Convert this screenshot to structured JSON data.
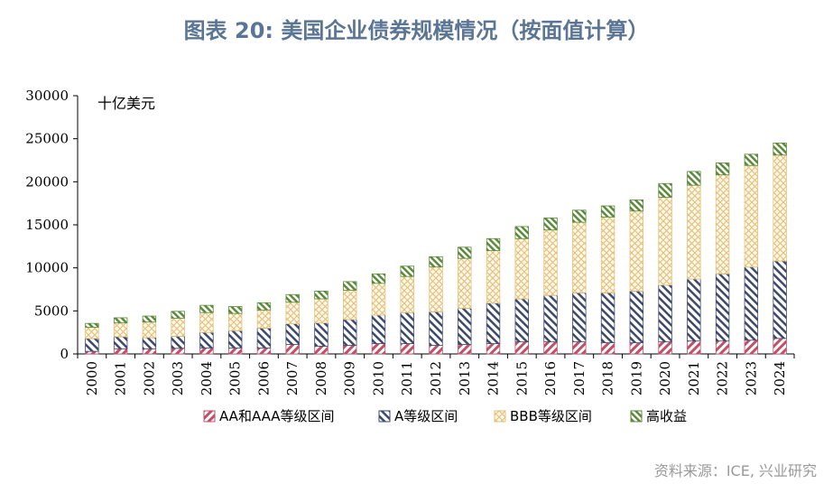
{
  "title": "图表 20: 美国企业债券规模情况（按面值计算）",
  "source": "资料来源：ICE, 兴业研究",
  "chart_data": {
    "type": "bar",
    "stacked": true,
    "unit_label": "十亿美元",
    "categories": [
      "2000",
      "2001",
      "2002",
      "2003",
      "2004",
      "2005",
      "2006",
      "2007",
      "2008",
      "2009",
      "2010",
      "2011",
      "2012",
      "2013",
      "2014",
      "2015",
      "2016",
      "2017",
      "2018",
      "2019",
      "2020",
      "2021",
      "2022",
      "2023",
      "2024"
    ],
    "ylim": [
      0,
      30000
    ],
    "yticks": [
      0,
      5000,
      10000,
      15000,
      20000,
      25000,
      30000
    ],
    "legend_position": "bottom",
    "series": [
      {
        "name": "AA和AAA等级区间",
        "color": "#c0506a",
        "pattern": "diag-right",
        "values": [
          300,
          600,
          600,
          650,
          700,
          700,
          700,
          1100,
          900,
          1000,
          1200,
          1200,
          1000,
          1100,
          1200,
          1400,
          1400,
          1400,
          1300,
          1300,
          1400,
          1500,
          1500,
          1600,
          1800
        ]
      },
      {
        "name": "A等级区间",
        "color": "#3d4a6b",
        "pattern": "diag-left",
        "values": [
          1500,
          1400,
          1300,
          1400,
          1800,
          2000,
          2300,
          2400,
          2700,
          3000,
          3300,
          3600,
          3900,
          4200,
          4700,
          5000,
          5400,
          5700,
          5800,
          6000,
          6600,
          7200,
          7800,
          8500,
          9000
        ]
      },
      {
        "name": "BBB等级区间",
        "color": "#e6c27a",
        "pattern": "cross",
        "values": [
          1300,
          1600,
          1800,
          2100,
          2300,
          2000,
          2100,
          2500,
          2800,
          3400,
          3700,
          4200,
          5200,
          5800,
          6100,
          7000,
          7600,
          8200,
          8800,
          9300,
          10200,
          10900,
          11500,
          11800,
          12300
        ]
      },
      {
        "name": "高收益",
        "color": "#5a8a3a",
        "pattern": "diag-green",
        "values": [
          450,
          600,
          700,
          800,
          850,
          800,
          850,
          900,
          900,
          1000,
          1100,
          1200,
          1200,
          1300,
          1400,
          1400,
          1400,
          1400,
          1300,
          1300,
          1600,
          1600,
          1400,
          1300,
          1400
        ]
      }
    ]
  }
}
